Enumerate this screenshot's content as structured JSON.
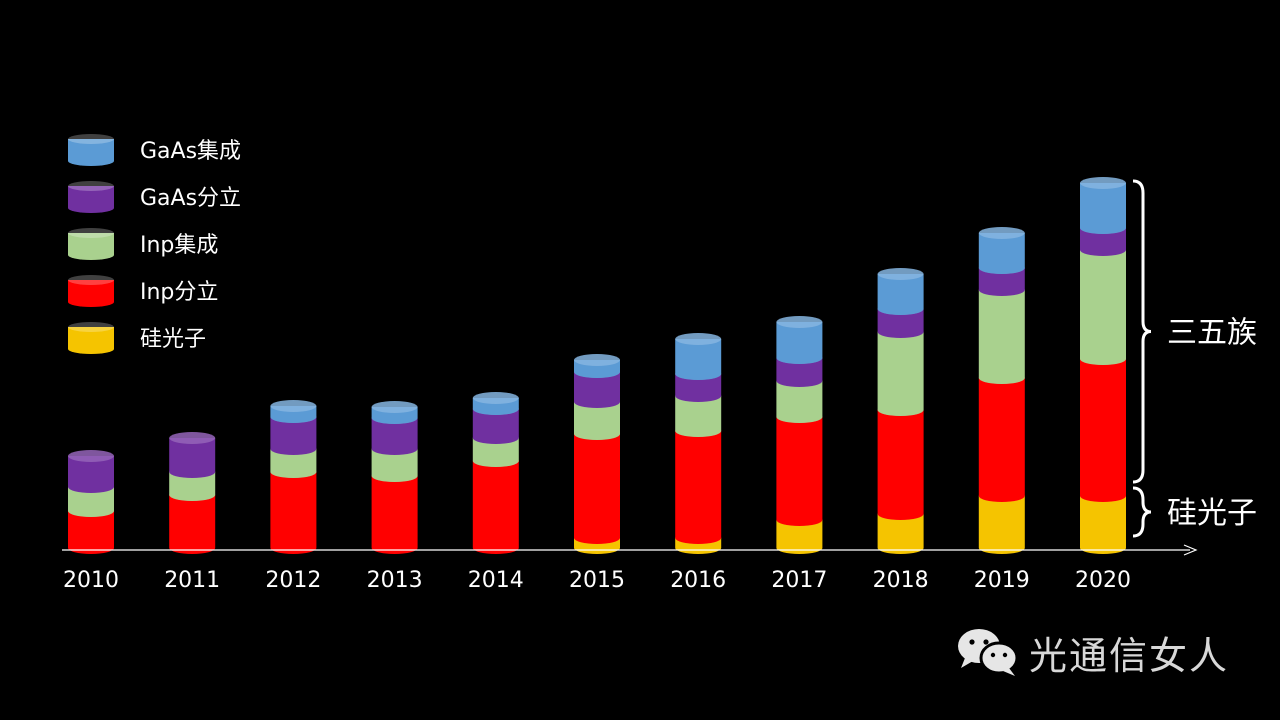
{
  "chart_data": {
    "type": "bar",
    "stacked": true,
    "categories": [
      "2010",
      "2011",
      "2012",
      "2013",
      "2014",
      "2015",
      "2016",
      "2017",
      "2018",
      "2019",
      "2020"
    ],
    "ylim": [
      0,
      370
    ],
    "series": [
      {
        "name": "硅光子",
        "color": "#f5c400",
        "values": [
          0,
          0,
          0,
          0,
          0,
          10,
          10,
          28,
          34,
          52,
          52
        ]
      },
      {
        "name": "Inp分立",
        "color": "#ff0000",
        "values": [
          37,
          53,
          76,
          72,
          87,
          104,
          107,
          103,
          104,
          118,
          137
        ]
      },
      {
        "name": "Inp集成",
        "color": "#a9d18e",
        "values": [
          24,
          23,
          23,
          27,
          23,
          32,
          35,
          36,
          78,
          88,
          109
        ]
      },
      {
        "name": "GaAs分立",
        "color": "#7030a0",
        "values": [
          31,
          34,
          32,
          31,
          29,
          30,
          22,
          23,
          23,
          22,
          22
        ]
      },
      {
        "name": "GaAs集成",
        "color": "#5b9bd5",
        "values": [
          0,
          0,
          11,
          11,
          11,
          12,
          35,
          36,
          35,
          35,
          45
        ]
      }
    ],
    "legend_position": "top-left",
    "legend_order": [
      "GaAs集成",
      "GaAs分立",
      "Inp集成",
      "Inp分立",
      "硅光子"
    ],
    "annotations": [
      {
        "label": "三五族",
        "covers": [
          "Inp分立",
          "Inp集成",
          "GaAs分立",
          "GaAs集成"
        ]
      },
      {
        "label": "硅光子",
        "covers": [
          "硅光子"
        ]
      }
    ]
  },
  "watermark": {
    "text": "光通信女人",
    "icon": "wechat-icon"
  }
}
